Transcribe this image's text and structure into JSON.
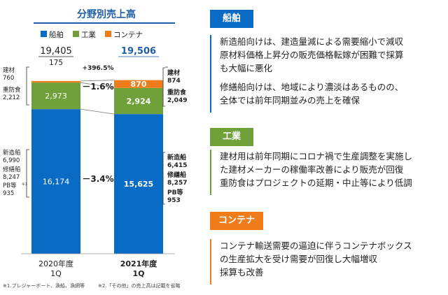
{
  "colors": {
    "shipbuilding": "#0a6bc4",
    "industrial": "#70a03a",
    "container": "#ef7c1a",
    "title_blue": "#1f5ea8",
    "pct_line": "#777777"
  },
  "chart_data": {
    "type": "bar",
    "stacked": true,
    "title": "分野別売上高",
    "categories": [
      "2020年度\n1Q",
      "2021年度\n1Q"
    ],
    "series": [
      {
        "name": "船舶",
        "values": [
          16174,
          15625
        ]
      },
      {
        "name": "工業",
        "values": [
          2973,
          2924
        ]
      },
      {
        "name": "コンテナ",
        "values": [
          175,
          870
        ]
      }
    ],
    "totals": [
      "19,405",
      "19,506"
    ],
    "bar_labels": {
      "s0": [
        "16,174",
        "15,625"
      ],
      "s1": [
        "2,973",
        "2,924"
      ],
      "s2": [
        "175",
        "870"
      ]
    },
    "changes": {
      "shipbuilding": "－3.4%",
      "industrial": "－1.6%",
      "container": "+396.5%"
    },
    "legend": [
      "船舶",
      "工業",
      "コンテナ"
    ],
    "legend_position": "top",
    "breakdown_left": [
      {
        "name": "建材",
        "value": "760"
      },
      {
        "name": "重防食",
        "value": "2,212"
      },
      {
        "name": "新造船",
        "value": "6,990"
      },
      {
        "name": "修繕船",
        "value": "8,247"
      },
      {
        "name": "PB等",
        "note": "※1",
        "value": "935"
      }
    ],
    "breakdown_right": [
      {
        "name": "建材",
        "value": "874"
      },
      {
        "name": "重防食",
        "value": "2,049"
      },
      {
        "name": "新造船",
        "value": "6,415"
      },
      {
        "name": "修繕船",
        "value": "8,257"
      },
      {
        "name": "PB等",
        "value": "953"
      }
    ],
    "ylim": [
      0,
      21500
    ]
  },
  "sections": [
    {
      "title": "船舶",
      "paragraphs": [
        "新造船向けは、建造量減による需要縮小で減収",
        "原材料価格上昇分の販売価格転嫁が困難で採算",
        "も大幅に悪化",
        "修繕船向けは、地域により濃淡はあるものの、",
        "全体では前年同期並みの売上を確保"
      ]
    },
    {
      "title": "工業",
      "paragraphs": [
        "建材用は前年同期にコロナ禍で生産調整を実施し",
        "た建材メーカーの稼働率改善により販売が回復",
        "重防食はプロジェクトの延期・中止等により低調"
      ]
    },
    {
      "title": "コンテナ",
      "paragraphs": [
        "コンテナ輸送需要の逼迫に伴うコンテナボックス",
        "の生産拡大を受け需要が回復し大幅増収",
        "採算も改善"
      ]
    }
  ],
  "footnotes": [
    "※1.プレジャーボート、漁船、漁網等",
    "※2.「その他」の売上高は記載を省略"
  ]
}
